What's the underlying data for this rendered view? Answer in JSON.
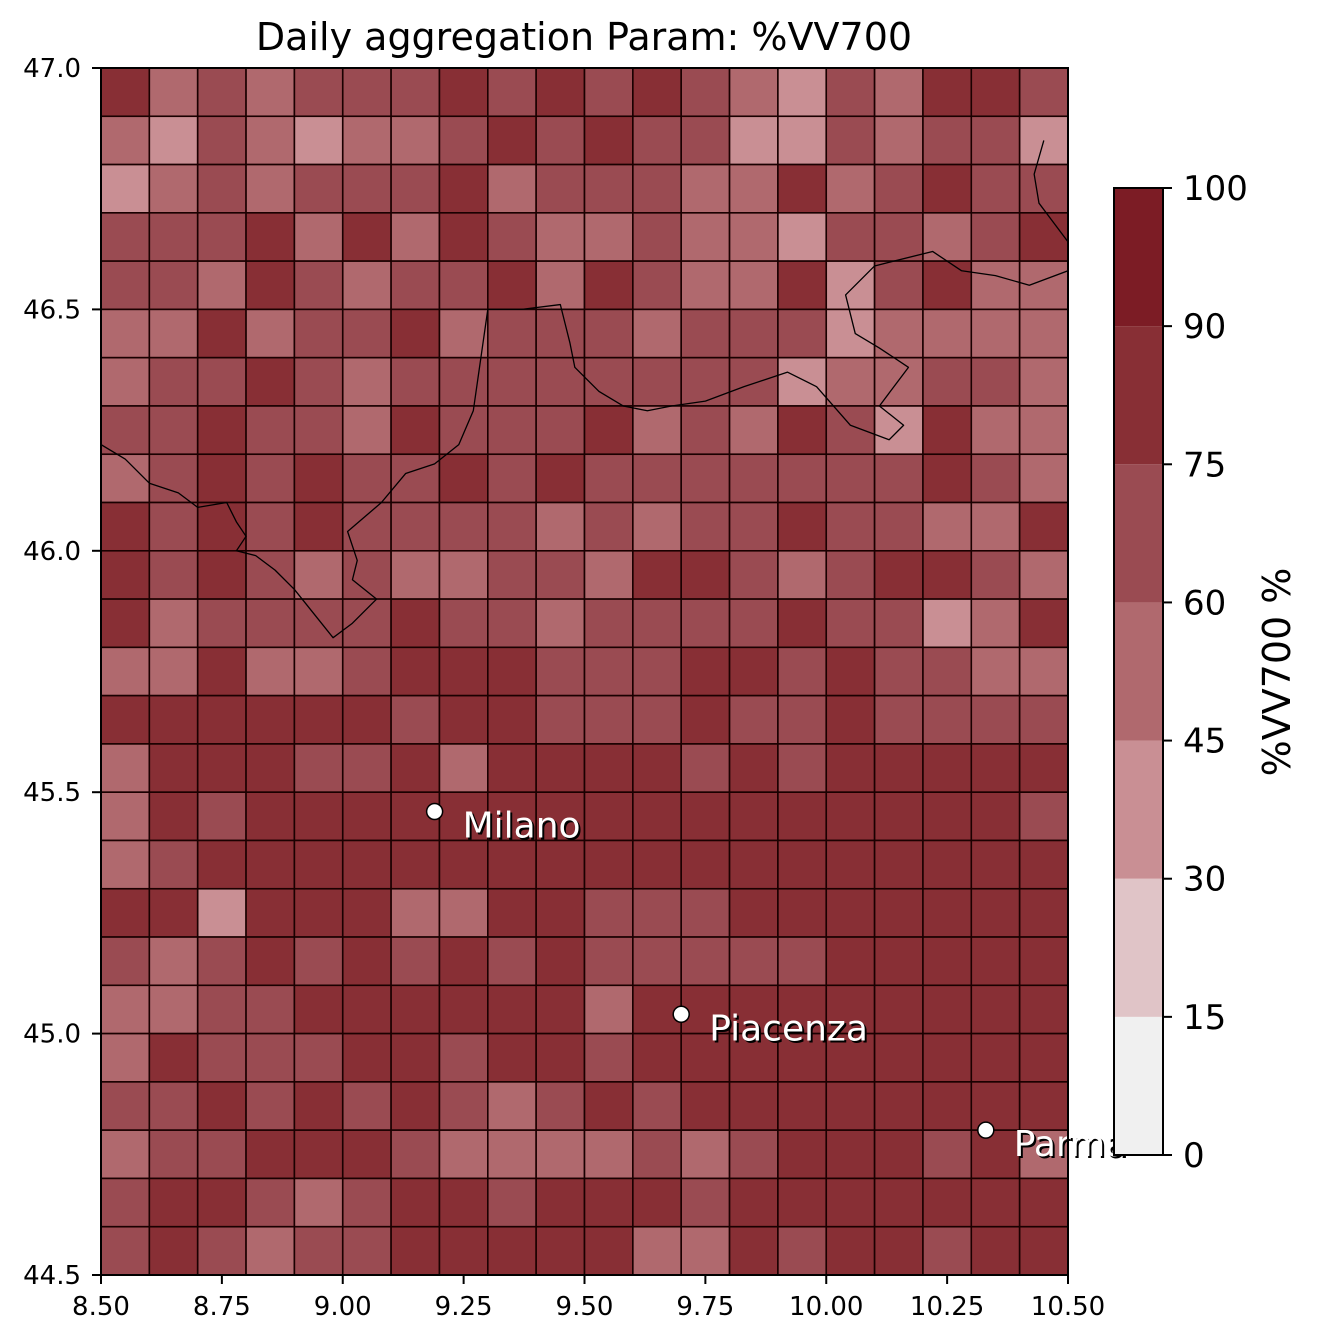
{
  "chart_data": {
    "type": "heatmap",
    "title": "Daily aggregation Param: %VV700",
    "xlabel": "",
    "ylabel": "",
    "xlim": [
      8.5,
      10.5
    ],
    "ylim": [
      44.5,
      47.0
    ],
    "x_ticks": [
      "8.50",
      "8.75",
      "9.00",
      "9.25",
      "9.50",
      "9.75",
      "10.00",
      "10.25",
      "10.50"
    ],
    "y_ticks": [
      "44.5",
      "45.0",
      "45.5",
      "46.0",
      "46.5",
      "47.0"
    ],
    "grid_x_edges": [
      8.5,
      8.6,
      8.7,
      8.8,
      8.9,
      9.0,
      9.1,
      9.2,
      9.3,
      9.4,
      9.5,
      9.6,
      9.7,
      9.8,
      9.9,
      10.0,
      10.1,
      10.2,
      10.3,
      10.4,
      10.5
    ],
    "grid_y_edges_top_down": [
      47.0,
      46.9,
      46.8,
      46.7,
      46.6,
      46.5,
      46.4,
      46.3,
      46.2,
      46.1,
      46.0,
      45.9,
      45.8,
      45.7,
      45.6,
      45.5,
      45.4,
      45.3,
      45.2,
      45.1,
      45.0,
      44.9,
      44.8,
      44.7,
      44.6,
      44.5
    ],
    "values_rows_top_down": [
      [
        80,
        55,
        65,
        55,
        65,
        65,
        65,
        80,
        65,
        80,
        65,
        80,
        65,
        55,
        40,
        65,
        55,
        80,
        80,
        65
      ],
      [
        55,
        40,
        65,
        55,
        40,
        55,
        55,
        65,
        80,
        65,
        80,
        65,
        65,
        40,
        40,
        65,
        55,
        65,
        65,
        40
      ],
      [
        40,
        55,
        65,
        55,
        65,
        65,
        65,
        80,
        55,
        65,
        65,
        65,
        55,
        55,
        80,
        55,
        65,
        80,
        65,
        65
      ],
      [
        65,
        65,
        65,
        80,
        55,
        80,
        55,
        80,
        65,
        55,
        55,
        65,
        55,
        55,
        40,
        65,
        65,
        55,
        65,
        80
      ],
      [
        65,
        65,
        55,
        80,
        65,
        55,
        65,
        65,
        80,
        55,
        80,
        65,
        55,
        55,
        80,
        40,
        65,
        80,
        55,
        55
      ],
      [
        55,
        55,
        80,
        55,
        65,
        65,
        80,
        55,
        65,
        65,
        65,
        55,
        65,
        65,
        65,
        40,
        55,
        55,
        55,
        55
      ],
      [
        55,
        65,
        65,
        80,
        65,
        55,
        65,
        65,
        65,
        65,
        65,
        65,
        65,
        65,
        40,
        55,
        55,
        65,
        65,
        55
      ],
      [
        65,
        65,
        80,
        65,
        65,
        55,
        80,
        65,
        65,
        65,
        80,
        55,
        65,
        55,
        80,
        65,
        40,
        80,
        55,
        55
      ],
      [
        55,
        65,
        80,
        65,
        80,
        65,
        65,
        80,
        65,
        80,
        65,
        65,
        65,
        65,
        65,
        65,
        65,
        80,
        65,
        55
      ],
      [
        80,
        65,
        80,
        65,
        80,
        65,
        65,
        65,
        65,
        55,
        65,
        55,
        65,
        65,
        80,
        65,
        65,
        55,
        55,
        80
      ],
      [
        80,
        65,
        80,
        65,
        55,
        65,
        55,
        55,
        65,
        65,
        55,
        80,
        80,
        65,
        55,
        65,
        80,
        80,
        65,
        55
      ],
      [
        80,
        55,
        65,
        65,
        65,
        65,
        80,
        65,
        65,
        55,
        65,
        65,
        65,
        65,
        80,
        65,
        65,
        40,
        55,
        80
      ],
      [
        55,
        55,
        80,
        55,
        55,
        65,
        80,
        80,
        80,
        65,
        65,
        65,
        80,
        80,
        65,
        80,
        65,
        65,
        55,
        55
      ],
      [
        80,
        80,
        80,
        80,
        80,
        80,
        65,
        80,
        80,
        65,
        65,
        65,
        80,
        65,
        65,
        80,
        65,
        65,
        65,
        65
      ],
      [
        55,
        80,
        80,
        80,
        65,
        65,
        80,
        55,
        80,
        80,
        80,
        80,
        65,
        80,
        65,
        80,
        80,
        80,
        80,
        80
      ],
      [
        55,
        80,
        65,
        80,
        80,
        80,
        80,
        80,
        80,
        80,
        80,
        80,
        80,
        80,
        80,
        80,
        80,
        80,
        80,
        65
      ],
      [
        55,
        65,
        80,
        80,
        80,
        80,
        80,
        80,
        80,
        80,
        80,
        80,
        80,
        80,
        80,
        80,
        80,
        80,
        80,
        80
      ],
      [
        80,
        80,
        40,
        80,
        80,
        80,
        55,
        55,
        80,
        80,
        65,
        65,
        65,
        80,
        80,
        80,
        80,
        80,
        80,
        80
      ],
      [
        65,
        55,
        65,
        80,
        65,
        80,
        65,
        80,
        65,
        80,
        65,
        65,
        65,
        65,
        65,
        80,
        80,
        80,
        80,
        80
      ],
      [
        55,
        55,
        65,
        65,
        80,
        80,
        80,
        80,
        80,
        80,
        55,
        80,
        80,
        80,
        80,
        80,
        80,
        80,
        80,
        80
      ],
      [
        55,
        80,
        65,
        65,
        65,
        80,
        80,
        65,
        80,
        80,
        65,
        80,
        80,
        80,
        80,
        80,
        80,
        80,
        80,
        80
      ],
      [
        65,
        65,
        80,
        65,
        80,
        65,
        80,
        65,
        55,
        65,
        80,
        65,
        80,
        80,
        80,
        80,
        80,
        80,
        80,
        80
      ],
      [
        55,
        65,
        65,
        80,
        80,
        80,
        65,
        55,
        55,
        55,
        55,
        65,
        55,
        65,
        80,
        80,
        80,
        65,
        80,
        55
      ],
      [
        65,
        80,
        80,
        65,
        55,
        65,
        80,
        80,
        65,
        80,
        80,
        80,
        65,
        80,
        80,
        80,
        80,
        80,
        80,
        80
      ],
      [
        65,
        80,
        65,
        55,
        65,
        65,
        80,
        80,
        80,
        80,
        80,
        55,
        55,
        80,
        65,
        80,
        80,
        65,
        80,
        80
      ]
    ],
    "colorbar": {
      "label": "%VV700 %",
      "boundaries": [
        0,
        15,
        30,
        45,
        60,
        75,
        90,
        100
      ],
      "tick_labels": [
        "0",
        "15",
        "30",
        "45",
        "60",
        "75",
        "90",
        "100"
      ],
      "colors": [
        "#f0f0f0",
        "#e0c4c7",
        "#c98f94",
        "#b0696e",
        "#9a4b52",
        "#882f35",
        "#7c1c25",
        "#640000"
      ]
    },
    "cities": [
      {
        "name": "Milano",
        "lon": 9.19,
        "lat": 45.46
      },
      {
        "name": "Piacenza",
        "lon": 9.7,
        "lat": 45.04
      },
      {
        "name": "Parma",
        "lon": 10.33,
        "lat": 44.8
      }
    ]
  }
}
